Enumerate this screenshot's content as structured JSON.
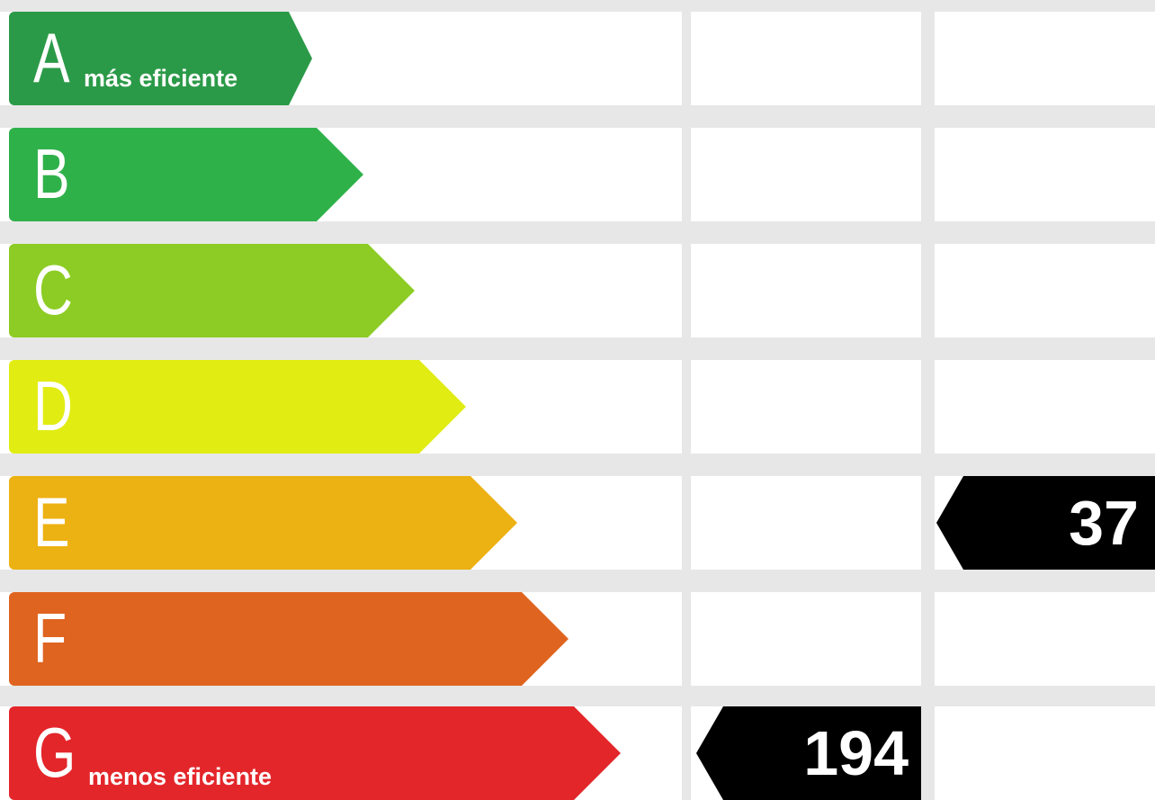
{
  "ratings": [
    {
      "letter": "A",
      "note": "más eficiente",
      "color": "#2b9a48"
    },
    {
      "letter": "B",
      "note": "",
      "color": "#2fb14a"
    },
    {
      "letter": "C",
      "note": "",
      "color": "#8ccc24"
    },
    {
      "letter": "D",
      "note": "",
      "color": "#e1ec13"
    },
    {
      "letter": "E",
      "note": "",
      "color": "#ecb112"
    },
    {
      "letter": "F",
      "note": "",
      "color": "#df641f"
    },
    {
      "letter": "G",
      "note": "menos eficiente",
      "color": "#e3262a"
    }
  ],
  "indicators": {
    "column_1": {
      "rating": "G",
      "value": "194"
    },
    "column_2": {
      "rating": "E",
      "value": "37"
    }
  }
}
